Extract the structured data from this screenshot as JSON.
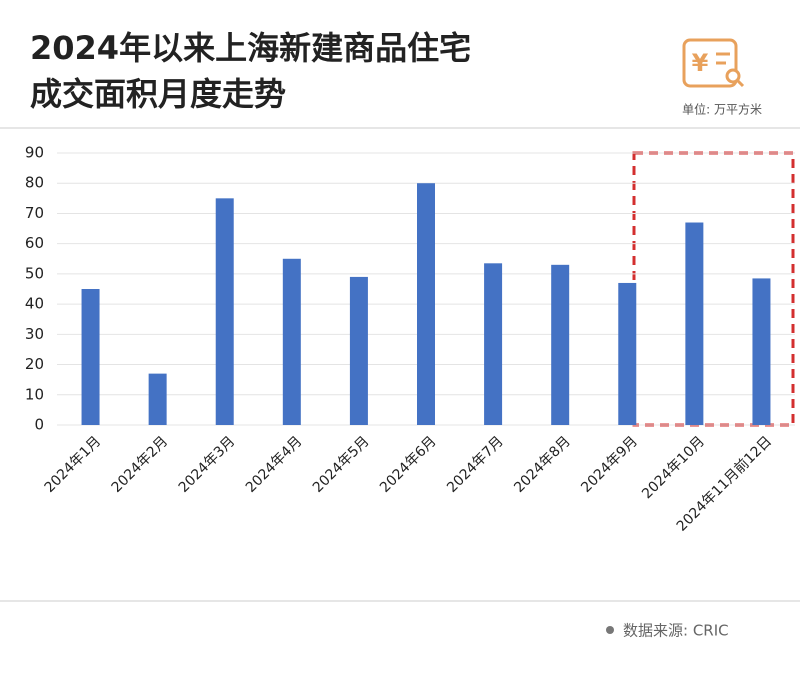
{
  "chart_data": {
    "type": "bar",
    "title": [
      "2024年以来上海新建商品住宅",
      "成交面积月度走势"
    ],
    "unit": "单位: 万平方米",
    "source": "数据来源: CRIC",
    "categories": [
      "2024年1月",
      "2024年2月",
      "2024年3月",
      "2024年4月",
      "2024年5月",
      "2024年6月",
      "2024年7月",
      "2024年8月",
      "2024年9月",
      "2024年10月",
      "2024年11月前12日"
    ],
    "values": [
      45,
      17,
      75,
      55,
      49,
      80,
      53.5,
      53,
      47,
      67,
      48.5
    ],
    "color": "#4472c4",
    "ylim": [
      0,
      90
    ],
    "yticks": [
      0,
      10,
      20,
      30,
      40,
      50,
      60,
      70,
      80,
      90
    ],
    "grid": true
  }
}
